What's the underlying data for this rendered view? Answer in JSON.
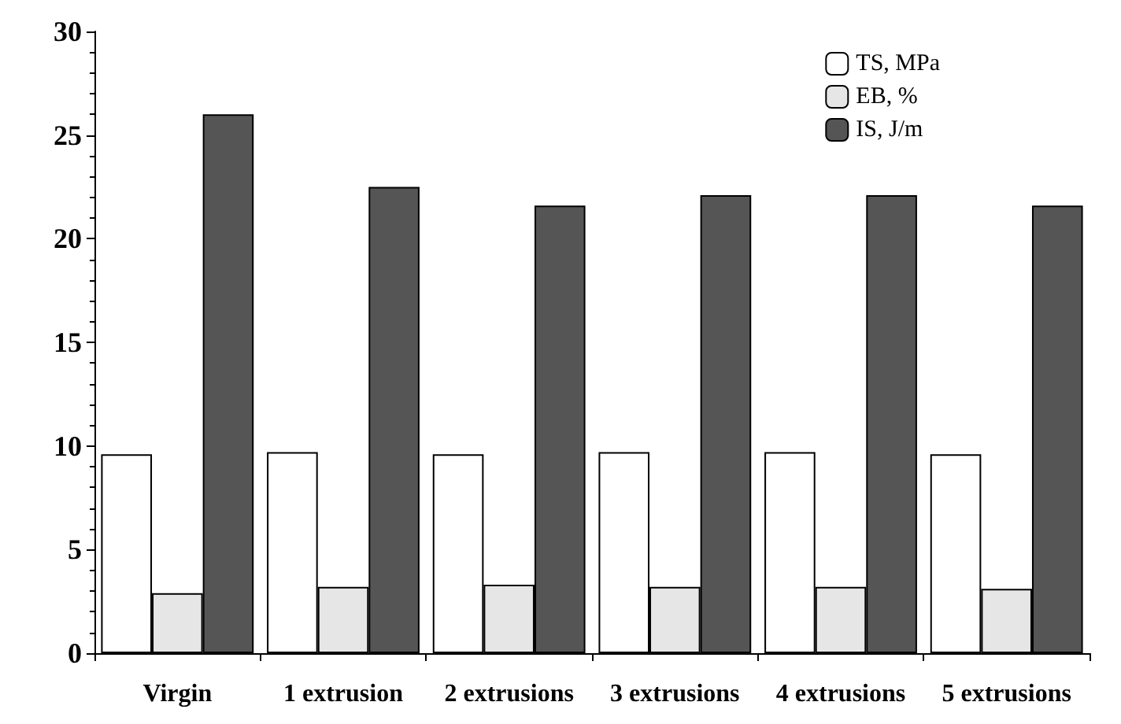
{
  "chart_data": {
    "type": "bar",
    "categories": [
      "Virgin",
      "1 extrusion",
      "2 extrusions",
      "3 extrusions",
      "4 extrusions",
      "5 extrusions"
    ],
    "series": [
      {
        "name": "TS, MPa",
        "color": "#ffffff",
        "values": [
          9.6,
          9.7,
          9.6,
          9.7,
          9.7,
          9.6
        ]
      },
      {
        "name": "EB, %",
        "color": "#e6e6e6",
        "values": [
          2.9,
          3.2,
          3.3,
          3.2,
          3.2,
          3.1
        ]
      },
      {
        "name": "IS, J/m",
        "color": "#555555",
        "values": [
          26.0,
          22.5,
          21.6,
          22.1,
          22.1,
          21.6
        ]
      }
    ],
    "ylim": [
      0,
      30
    ],
    "yticks": [
      0,
      5,
      10,
      15,
      20,
      25,
      30
    ],
    "grid": false,
    "legend": "top right"
  }
}
